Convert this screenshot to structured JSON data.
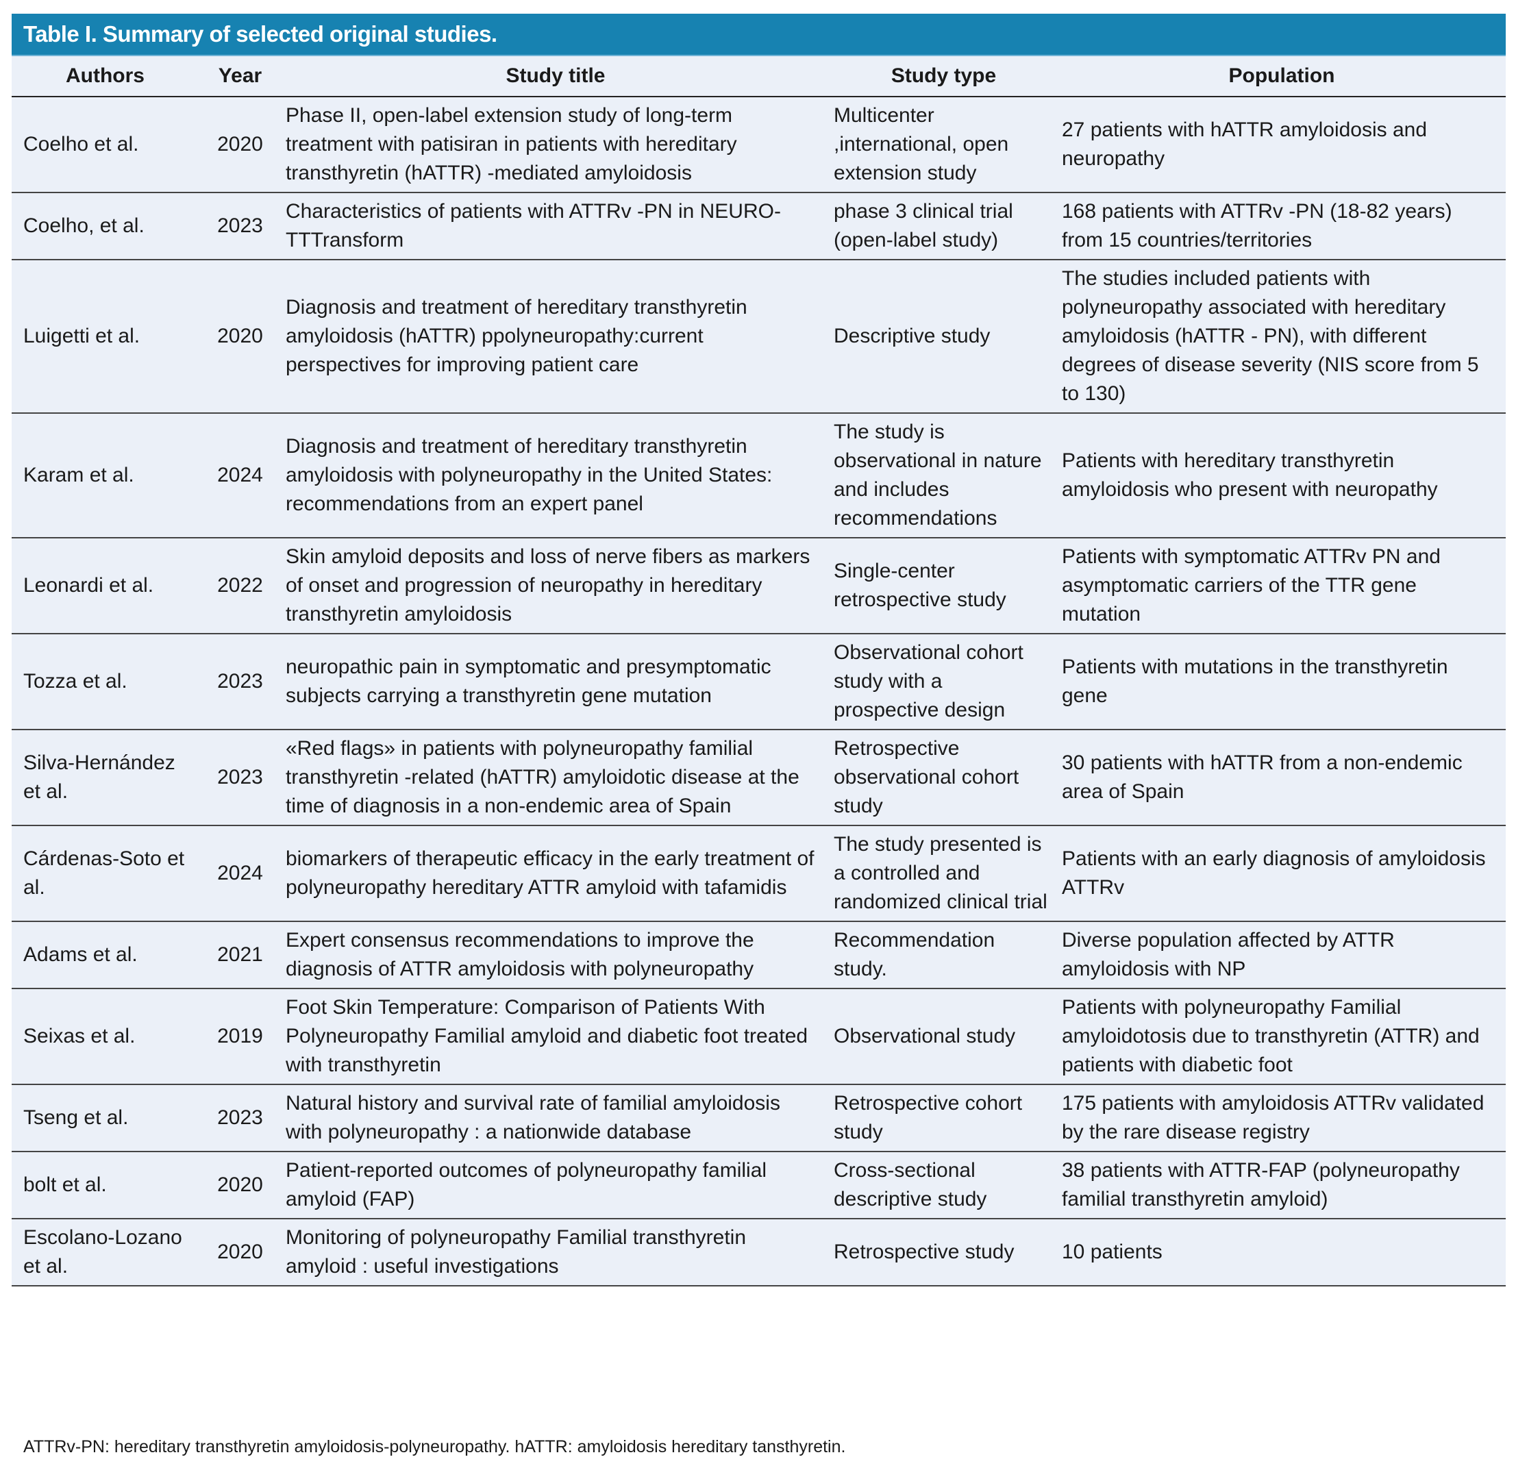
{
  "table": {
    "title": "Table I. Summary of selected original studies.",
    "header_color": "#1782b1",
    "row_color": "#ebf0f8",
    "columns": [
      "Authors",
      "Year",
      "Study title",
      "Study type",
      "Population"
    ],
    "rows": [
      {
        "authors": "Coelho et al.",
        "year": "2020",
        "title": "Phase II, open-label extension study of long-term treatment with patisiran in patients with hereditary transthyretin (hATTR) -mediated amyloidosis",
        "type": "Multicenter ,international, open extension study",
        "population": "27 patients with hATTR amyloidosis and neuropathy"
      },
      {
        "authors": "Coelho, et al.",
        "year": "2023",
        "title": "Characteristics of patients with ATTRv -PN in NEURO- TTTransform",
        "type": "phase 3 clinical trial (open-label study)",
        "population": "168 patients with ATTRv -PN (18-82 years) from 15 countries/territories"
      },
      {
        "authors": "Luigetti et al.",
        "year": "2020",
        "title": "Diagnosis and treatment of hereditary transthyretin amyloidosis (hATTR) ppolyneuropathy:current perspectives for improving patient care",
        "type": "Descriptive study",
        "population": "The studies included patients with polyneuropathy associated with hereditary amyloidosis (hATTR - PN), with different degrees of disease severity (NIS score from 5 to 130)"
      },
      {
        "authors": "Karam et al.",
        "year": "2024",
        "title": "Diagnosis and treatment of hereditary transthyretin amyloidosis with polyneuropathy in the United States: recommendations from an expert panel",
        "type": "The study is observational in nature and includes recommendations",
        "population": "Patients with hereditary transthyretin amyloidosis who present with neuropathy"
      },
      {
        "authors": "Leonardi et al.",
        "year": "2022",
        "title": "Skin amyloid deposits and loss of nerve fibers as markers of onset and progression of neuropathy in hereditary transthyretin amyloidosis",
        "type": "Single-center retrospective study",
        "population": "Patients with symptomatic ATTRv PN and asymptomatic carriers of the TTR gene mutation"
      },
      {
        "authors": "Tozza  et al.",
        "year": "2023",
        "title": "neuropathic pain in symptomatic and presymptomatic subjects carrying a transthyretin gene mutation",
        "type": "Observational cohort study with a prospective design",
        "population": "Patients with mutations in the transthyretin gene"
      },
      {
        "authors": "Silva-Hernández et al.",
        "year": "2023",
        "title": "«Red flags» in patients with polyneuropathy familial transthyretin -related (hATTR) amyloidotic disease at the time of diagnosis in a non-endemic area of Spain",
        "type": "Retrospective observational cohort study",
        "population": "30 patients with hATTR from a non-endemic area of Spain"
      },
      {
        "authors": "Cárdenas-Soto et al.",
        "year": "2024",
        "title": "biomarkers of therapeutic efficacy in the early treatment of polyneuropathy hereditary ATTR amyloid with tafamidis",
        "type": "The study presented is a controlled and randomized clinical trial",
        "population": "Patients with an early diagnosis of amyloidosis ATTRv"
      },
      {
        "authors": "Adams et al.",
        "year": "2021",
        "title": "Expert consensus recommendations to improve the diagnosis of ATTR amyloidosis with polyneuropathy",
        "type": "Recommendation study.",
        "population": "Diverse population affected by ATTR amyloidosis with NP"
      },
      {
        "authors": "Seixas et al.",
        "year": "2019",
        "title": "Foot Skin Temperature: Comparison of Patients With Polyneuropathy Familial amyloid and diabetic foot treated with transthyretin",
        "type": "Observational study",
        "population": "Patients with polyneuropathy Familial amyloidotosis due to transthyretin (ATTR) and patients with diabetic foot"
      },
      {
        "authors": "Tseng et al.",
        "year": "2023",
        "title": "Natural history and survival rate of familial amyloidosis with polyneuropathy : a nationwide database",
        "type": "Retrospective cohort study",
        "population": "175 patients with amyloidosis ATTRv validated by the rare disease registry"
      },
      {
        "authors": "bolt et al.",
        "year": "2020",
        "title": "Patient-reported outcomes of polyneuropathy familial amyloid (FAP)",
        "type": "Cross-sectional descriptive study",
        "population": "38 patients with ATTR-FAP (polyneuropathy familial transthyretin amyloid)"
      },
      {
        "authors": "Escolano-Lozano et al.",
        "year": "2020",
        "title": "Monitoring of polyneuropathy Familial transthyretin amyloid : useful investigations",
        "type": "Retrospective study",
        "population": "10 patients"
      }
    ],
    "footnote": "ATTRv-PN: hereditary transthyretin amyloidosis-polyneuropathy. hATTR: amyloidosis hereditary tansthyretin."
  }
}
